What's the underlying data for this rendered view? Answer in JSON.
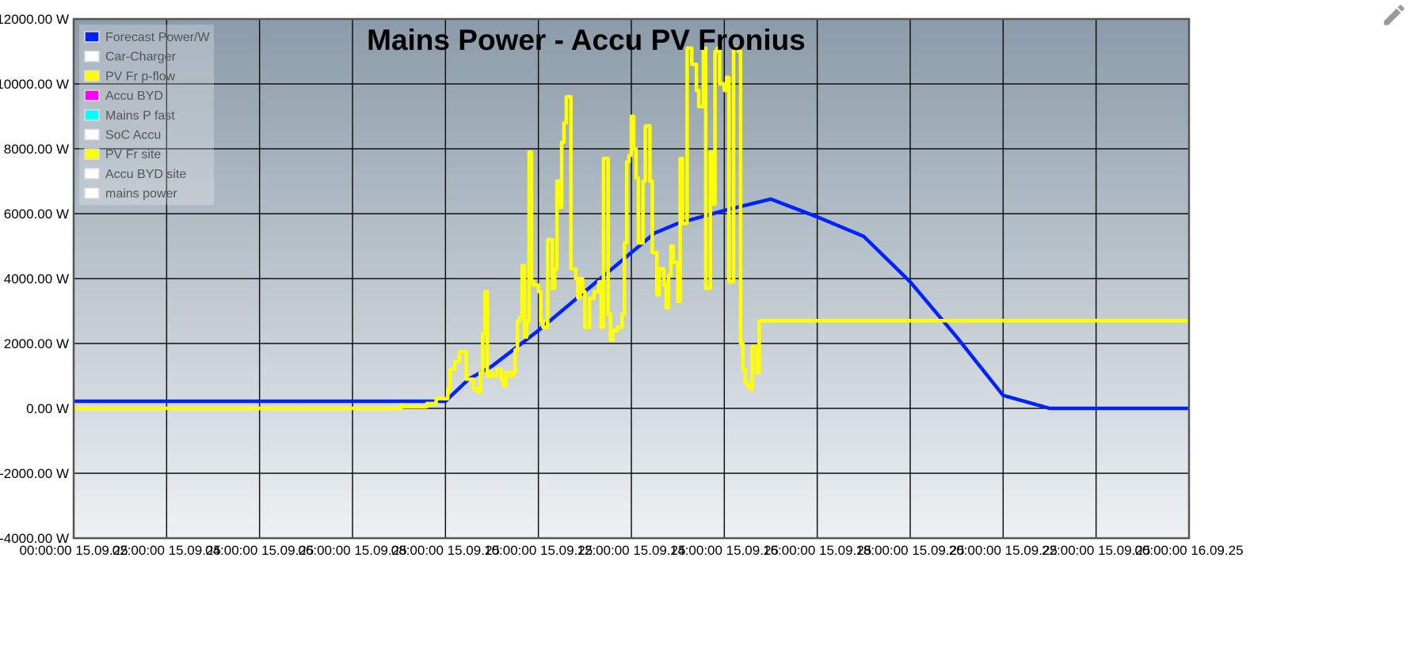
{
  "chart_data": {
    "type": "line",
    "title": "Mains Power - Accu PV Fronius",
    "y_unit": "W",
    "ylim": [
      -4000,
      12000
    ],
    "y_ticks": [
      {
        "value": 12000,
        "label": "12000.00 W"
      },
      {
        "value": 10000,
        "label": "10000.00 W"
      },
      {
        "value": 8000,
        "label": "8000.00 W"
      },
      {
        "value": 6000,
        "label": "6000.00 W"
      },
      {
        "value": 4000,
        "label": "4000.00 W"
      },
      {
        "value": 2000,
        "label": "2000.00 W"
      },
      {
        "value": 0,
        "label": "0.00 W"
      },
      {
        "value": -2000,
        "label": "-2000.00 W"
      },
      {
        "value": -4000,
        "label": "-4000.00 W"
      }
    ],
    "xlim": [
      0,
      24
    ],
    "x_unit": "hour of 15.09.25",
    "x_ticks": [
      {
        "value": 0,
        "label": "00:00:00 15.09.25"
      },
      {
        "value": 2,
        "label": "02:00:00 15.09.25"
      },
      {
        "value": 4,
        "label": "04:00:00 15.09.25"
      },
      {
        "value": 6,
        "label": "06:00:00 15.09.25"
      },
      {
        "value": 8,
        "label": "08:00:00 15.09.25"
      },
      {
        "value": 10,
        "label": "10:00:00 15.09.25"
      },
      {
        "value": 12,
        "label": "12:00:00 15.09.25"
      },
      {
        "value": 14,
        "label": "14:00:00 15.09.25"
      },
      {
        "value": 16,
        "label": "16:00:00 15.09.25"
      },
      {
        "value": 18,
        "label": "18:00:00 15.09.25"
      },
      {
        "value": 20,
        "label": "20:00:00 15.09.25"
      },
      {
        "value": 22,
        "label": "22:00:00 15.09.25"
      },
      {
        "value": 24,
        "label": "00:00:00 16.09.25"
      }
    ],
    "grid": true,
    "legend_position": "top-left",
    "legend": [
      {
        "name": "Forecast Power/W",
        "color": "#0022ff"
      },
      {
        "name": "Car-Charger",
        "color": "#ffffff"
      },
      {
        "name": "PV Fr p-flow",
        "color": "#ffff00"
      },
      {
        "name": "Accu BYD",
        "color": "#ff00ff"
      },
      {
        "name": "Mains P fast",
        "color": "#00ffff"
      },
      {
        "name": "SoC Accu",
        "color": "#ffffff"
      },
      {
        "name": "PV Fr site",
        "color": "#ffff00"
      },
      {
        "name": "Accu BYD site",
        "color": "#ffffff"
      },
      {
        "name": "mains power",
        "color": "#ffffff"
      }
    ],
    "series": [
      {
        "name": "Forecast Power/W",
        "color": "#0022ff",
        "style": "line",
        "points": [
          [
            0,
            220
          ],
          [
            8,
            220
          ],
          [
            8.5,
            900
          ],
          [
            9,
            1300
          ],
          [
            10,
            2400
          ],
          [
            11,
            3600
          ],
          [
            12,
            4800
          ],
          [
            12.5,
            5400
          ],
          [
            13,
            5700
          ],
          [
            14,
            6100
          ],
          [
            15,
            6450
          ],
          [
            16,
            5900
          ],
          [
            17,
            5300
          ],
          [
            18,
            3900
          ],
          [
            19,
            2200
          ],
          [
            20,
            400
          ],
          [
            21,
            0
          ],
          [
            24,
            0
          ]
        ]
      },
      {
        "name": "PV Fr site",
        "color": "#ffff00",
        "style": "step",
        "points": [
          [
            0,
            0
          ],
          [
            7,
            0
          ],
          [
            7.05,
            100
          ],
          [
            7.1,
            50
          ],
          [
            7.6,
            150
          ],
          [
            7.8,
            300
          ],
          [
            8.0,
            300
          ],
          [
            8.05,
            600
          ],
          [
            8.1,
            1200
          ],
          [
            8.2,
            1450
          ],
          [
            8.3,
            1750
          ],
          [
            8.45,
            900
          ],
          [
            8.6,
            600
          ],
          [
            8.7,
            500
          ],
          [
            8.75,
            1100
          ],
          [
            8.8,
            2300
          ],
          [
            8.85,
            3600
          ],
          [
            8.9,
            1000
          ],
          [
            8.95,
            1100
          ],
          [
            9.0,
            1000
          ],
          [
            9.1,
            1200
          ],
          [
            9.2,
            900
          ],
          [
            9.25,
            700
          ],
          [
            9.3,
            1100
          ],
          [
            9.4,
            1000
          ],
          [
            9.45,
            1100
          ],
          [
            9.5,
            1800
          ],
          [
            9.55,
            2700
          ],
          [
            9.6,
            2800
          ],
          [
            9.65,
            4400
          ],
          [
            9.7,
            2200
          ],
          [
            9.75,
            2700
          ],
          [
            9.8,
            7900
          ],
          [
            9.85,
            3900
          ],
          [
            9.9,
            3800
          ],
          [
            10.0,
            3600
          ],
          [
            10.05,
            2700
          ],
          [
            10.1,
            2500
          ],
          [
            10.2,
            5200
          ],
          [
            10.3,
            3700
          ],
          [
            10.35,
            4300
          ],
          [
            10.4,
            7000
          ],
          [
            10.45,
            6200
          ],
          [
            10.5,
            8200
          ],
          [
            10.55,
            8800
          ],
          [
            10.6,
            9600
          ],
          [
            10.7,
            4300
          ],
          [
            10.8,
            4000
          ],
          [
            10.85,
            3400
          ],
          [
            10.9,
            4000
          ],
          [
            10.95,
            3600
          ],
          [
            11.0,
            2500
          ],
          [
            11.1,
            3400
          ],
          [
            11.2,
            3600
          ],
          [
            11.3,
            3900
          ],
          [
            11.35,
            2500
          ],
          [
            11.4,
            7700
          ],
          [
            11.5,
            2900
          ],
          [
            11.55,
            2100
          ],
          [
            11.6,
            2400
          ],
          [
            11.7,
            2500
          ],
          [
            11.8,
            2900
          ],
          [
            11.85,
            5100
          ],
          [
            11.9,
            7600
          ],
          [
            11.95,
            7800
          ],
          [
            12.0,
            9000
          ],
          [
            12.05,
            8000
          ],
          [
            12.1,
            7100
          ],
          [
            12.15,
            5100
          ],
          [
            12.2,
            5100
          ],
          [
            12.25,
            7000
          ],
          [
            12.3,
            8700
          ],
          [
            12.4,
            7000
          ],
          [
            12.45,
            4800
          ],
          [
            12.5,
            4800
          ],
          [
            12.55,
            3500
          ],
          [
            12.6,
            4300
          ],
          [
            12.65,
            4300
          ],
          [
            12.7,
            3800
          ],
          [
            12.75,
            3100
          ],
          [
            12.8,
            4100
          ],
          [
            12.85,
            5000
          ],
          [
            12.9,
            4500
          ],
          [
            13.0,
            3300
          ],
          [
            13.05,
            7700
          ],
          [
            13.1,
            5700
          ],
          [
            13.2,
            11100
          ],
          [
            13.3,
            10600
          ],
          [
            13.35,
            10600
          ],
          [
            13.4,
            9800
          ],
          [
            13.45,
            9300
          ],
          [
            13.5,
            9300
          ],
          [
            13.55,
            11100
          ],
          [
            13.6,
            3700
          ],
          [
            13.7,
            7900
          ],
          [
            13.75,
            6300
          ],
          [
            13.8,
            11000
          ],
          [
            13.85,
            11100
          ],
          [
            13.9,
            10000
          ],
          [
            14.0,
            9800
          ],
          [
            14.05,
            10200
          ],
          [
            14.1,
            3900
          ],
          [
            14.2,
            11100
          ],
          [
            14.3,
            11000
          ],
          [
            14.35,
            2000
          ],
          [
            14.4,
            1200
          ],
          [
            14.45,
            800
          ],
          [
            14.5,
            700
          ],
          [
            14.55,
            600
          ],
          [
            14.6,
            1900
          ],
          [
            14.7,
            1100
          ],
          [
            14.75,
            2700
          ],
          [
            24,
            2700
          ]
        ]
      }
    ]
  },
  "toolbar": {
    "edit_icon": "pencil-icon"
  }
}
